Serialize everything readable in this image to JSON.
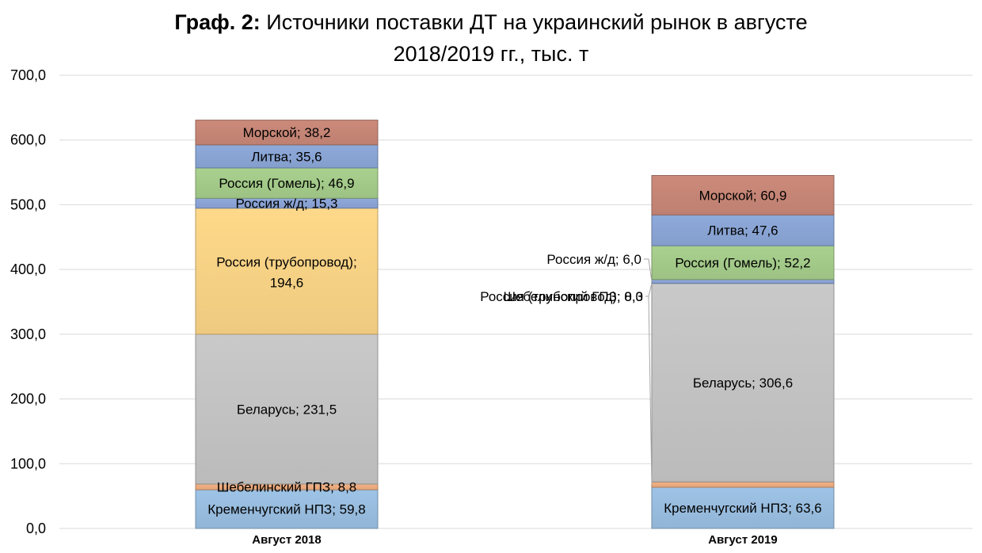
{
  "title": {
    "prefix": "Граф. 2:",
    "line1": "Источники поставки ДТ на украинский рынок в августе",
    "line2": "2018/2019 гг., тыс. т"
  },
  "chart_data": {
    "type": "bar",
    "stacked": true,
    "title": "Граф. 2: Источники поставки ДТ на украинский рынок в августе 2018/2019 гг., тыс. т",
    "xlabel": "",
    "ylabel": "",
    "ylim": [
      0,
      700
    ],
    "yticks": [
      0,
      100,
      200,
      300,
      400,
      500,
      600,
      700
    ],
    "ytick_labels": [
      "0,0",
      "100,0",
      "200,0",
      "300,0",
      "400,0",
      "500,0",
      "600,0",
      "700,0"
    ],
    "grid": true,
    "categories": [
      "Август 2018",
      "Август 2019"
    ],
    "series": [
      {
        "name": "Кременчугский НПЗ",
        "color": "#9dc3e6",
        "values": [
          59.8,
          63.6
        ],
        "labels": [
          "Кременчугский НПЗ; 59,8",
          "Кременчугский НПЗ; 63,6"
        ]
      },
      {
        "name": "Шебелинский ГПЗ",
        "color": "#f4b183",
        "values": [
          8.8,
          8.3
        ],
        "labels": [
          "Шебелинский ГПЗ; 8,8",
          "Шебелинский ГПЗ; 8,3"
        ]
      },
      {
        "name": "Беларусь",
        "color": "#c9c9c9",
        "values": [
          231.5,
          306.6
        ],
        "labels": [
          "Беларусь; 231,5",
          "Беларусь; 306,6"
        ]
      },
      {
        "name": "Россия (трубопровод)",
        "color": "#ffd98a",
        "values": [
          194.6,
          0.0
        ],
        "labels": [
          "Россия (трубопровод); 194,6",
          "Россия (трубопровод); 0,0"
        ]
      },
      {
        "name": "Россия ж/д",
        "color": "#8fa9dc",
        "values": [
          15.3,
          6.0
        ],
        "labels": [
          "Россия ж/д; 15,3",
          "Россия ж/д; 6,0"
        ]
      },
      {
        "name": "Россия (Гомель)",
        "color": "#a9d18e",
        "values": [
          46.9,
          52.2
        ],
        "labels": [
          "Россия (Гомель); 46,9",
          "Россия (Гомель); 52,2"
        ]
      },
      {
        "name": "Литва",
        "color": "#8eaadb",
        "values": [
          35.6,
          47.6
        ],
        "labels": [
          "Литва; 35,6",
          "Литва; 47,6"
        ]
      },
      {
        "name": "Морской",
        "color": "#cc8a7a",
        "values": [
          38.2,
          60.9
        ],
        "labels": [
          "Морской; 38,2",
          "Морской; 60,9"
        ]
      }
    ]
  }
}
